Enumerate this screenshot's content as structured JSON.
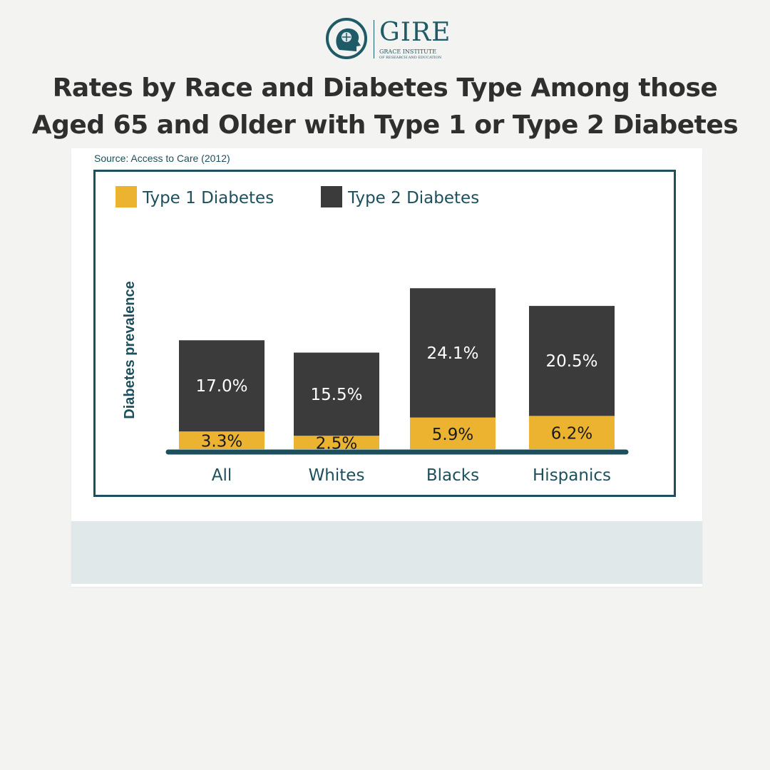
{
  "brand": {
    "name": "GIRE",
    "subtitle_line1": "GRACE INSTITUTE",
    "subtitle_line2": "OF RESEARCH AND EDUCATION"
  },
  "title_lines": [
    "Rates by Race and Diabetes Type Among those",
    "Aged 65 and Older with Type 1 or Type 2 Diabetes"
  ],
  "source": "Source: Access to Care (2012)",
  "colors": {
    "type1": "#ecb331",
    "type2": "#3b3b3b",
    "axis": "#1d4f5c",
    "label": "#1d4f5c"
  },
  "chart_data": {
    "type": "bar",
    "stacked": true,
    "categories": [
      "All",
      "Whites",
      "Blacks",
      "Hispanics"
    ],
    "series": [
      {
        "name": "Type 1 Diabetes",
        "values": [
          3.3,
          2.5,
          5.9,
          6.2
        ],
        "labels": [
          "3.3%",
          "2.5%",
          "5.9%",
          "6.2%"
        ]
      },
      {
        "name": "Type 2 Diabetes",
        "values": [
          17.0,
          15.5,
          24.1,
          20.5
        ],
        "labels": [
          "17.0%",
          "15.5%",
          "24.1%",
          "20.5%"
        ]
      }
    ],
    "ylabel": "Diabetes prevalence",
    "ylim": [
      0,
      30.3
    ],
    "legend": "top-left",
    "grid": false
  }
}
